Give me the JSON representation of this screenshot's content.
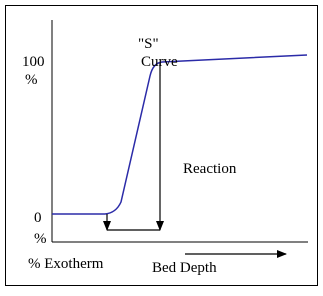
{
  "y_axis": {
    "top_label": [
      "100",
      "%"
    ],
    "bottom_label": [
      "0",
      "%"
    ],
    "title": "% Exotherm"
  },
  "x_axis": {
    "title": "Bed Depth"
  },
  "annotations": {
    "s_curve": [
      "\"S\"",
      "Curve"
    ],
    "reaction": "Reaction"
  }
}
